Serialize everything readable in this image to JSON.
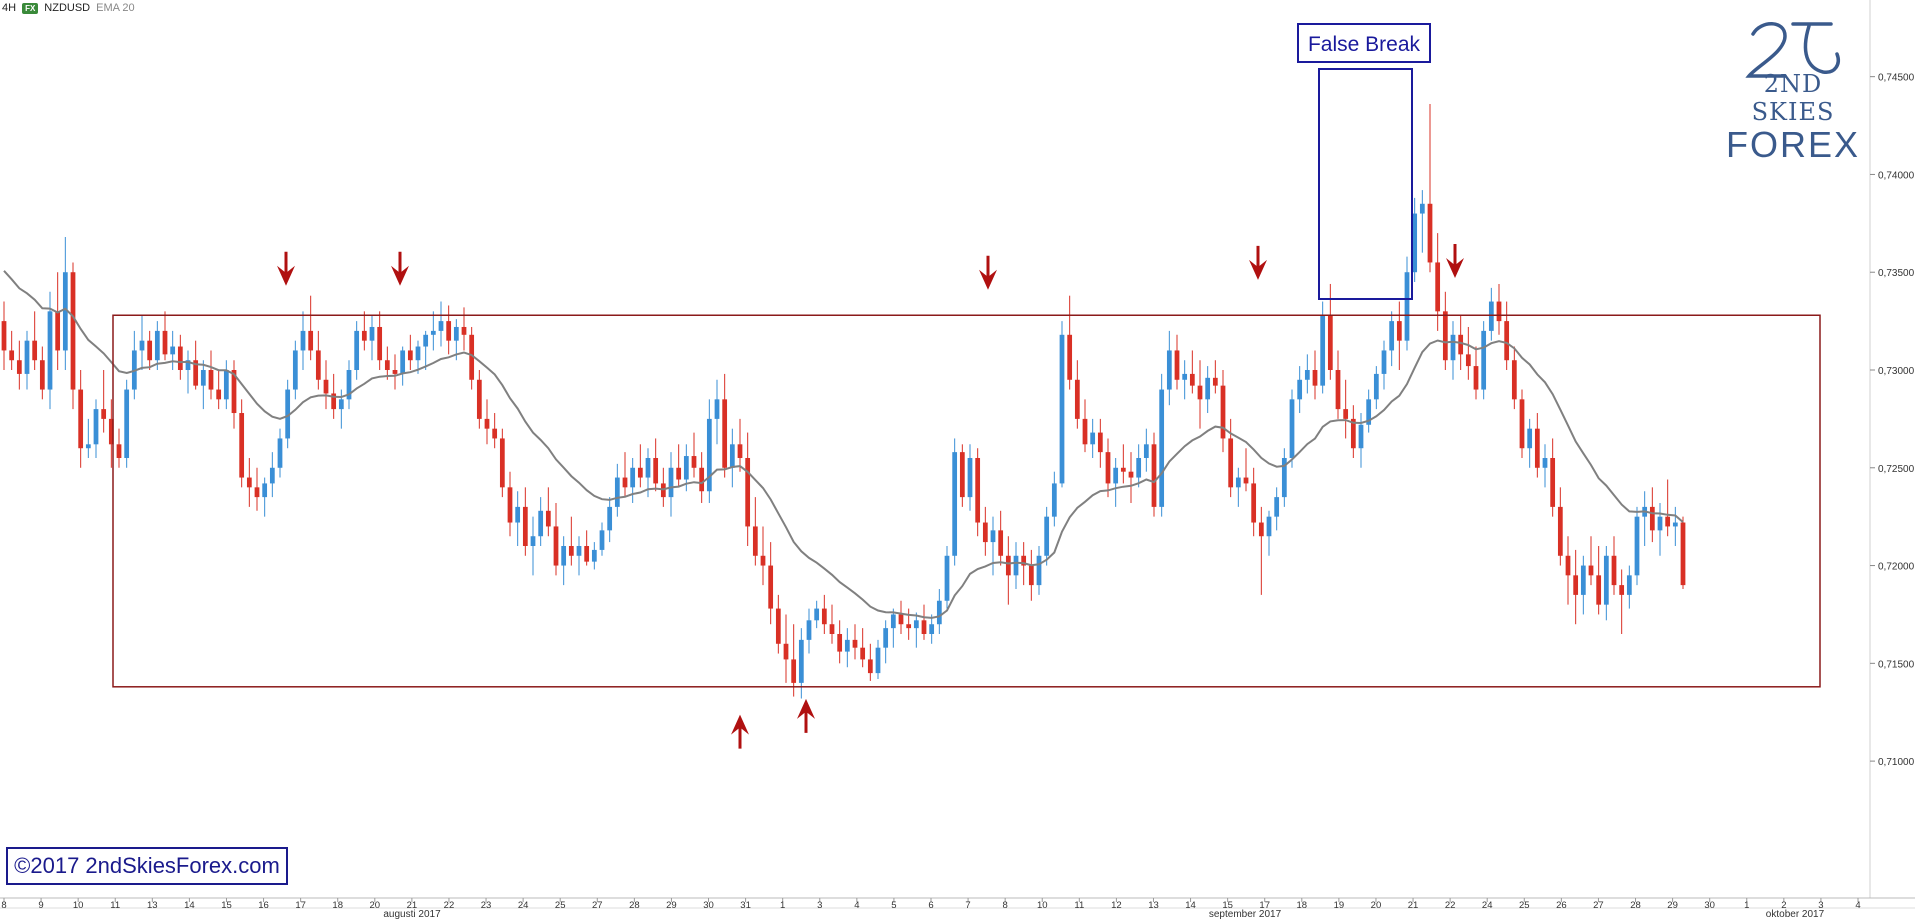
{
  "header": {
    "timeframe": "4H",
    "fx_badge": "FX",
    "symbol": "NZDUSD",
    "indicator": "EMA 20"
  },
  "logo": {
    "line1": "2ND SKIES",
    "line2": "FOREX"
  },
  "copyright": "©2017 2ndSkiesForex.com",
  "annotation": {
    "false_break_label": "False Break"
  },
  "colors": {
    "bull": "#3a8fd6",
    "bear": "#d93025",
    "ema": "#808080",
    "range_box": "#8b1a1a",
    "arrow": "#b01010",
    "false_break_box": "#1a1a9c"
  },
  "chart_data": {
    "type": "candlestick",
    "y_axis": {
      "min": 0.703,
      "max": 0.748,
      "ticks": [
        "0,74500",
        "0,74000",
        "0,73500",
        "0,73000",
        "0,72500",
        "0,72000",
        "0,71500",
        "0,71000"
      ],
      "tick_values": [
        0.745,
        0.74,
        0.735,
        0.73,
        0.725,
        0.72,
        0.715,
        0.71
      ]
    },
    "x_axis": {
      "day_labels": [
        "8",
        "9",
        "10",
        "11",
        "13",
        "14",
        "15",
        "16",
        "17",
        "18",
        "20",
        "21",
        "22",
        "23",
        "24",
        "25",
        "27",
        "28",
        "29",
        "30",
        "31",
        "1",
        "3",
        "4",
        "5",
        "6",
        "7",
        "8",
        "10",
        "11",
        "12",
        "13",
        "14",
        "15",
        "17",
        "18",
        "19",
        "20",
        "21",
        "22",
        "24",
        "25",
        "26",
        "27",
        "28",
        "29",
        "30",
        "1",
        "2",
        "3",
        "4"
      ],
      "month_labels": [
        "augusti 2017",
        "september 2017",
        "oktober 2017"
      ]
    },
    "range": {
      "top": 0.7328,
      "bottom": 0.7138
    },
    "resistance_arrows": [
      0.734,
      0.734,
      0.7338,
      0.7343,
      0.7344
    ],
    "support_arrows": [
      0.7133,
      0.7141
    ],
    "false_break_high": 0.7436,
    "candles": [
      [
        0.7325,
        0.7335,
        0.73,
        0.731
      ],
      [
        0.731,
        0.732,
        0.73,
        0.7305
      ],
      [
        0.7305,
        0.7315,
        0.729,
        0.7298
      ],
      [
        0.7298,
        0.732,
        0.729,
        0.7315
      ],
      [
        0.7315,
        0.733,
        0.73,
        0.7305
      ],
      [
        0.7305,
        0.7312,
        0.7285,
        0.729
      ],
      [
        0.729,
        0.734,
        0.728,
        0.733
      ],
      [
        0.733,
        0.735,
        0.73,
        0.731
      ],
      [
        0.731,
        0.7368,
        0.73,
        0.735
      ],
      [
        0.735,
        0.7355,
        0.728,
        0.729
      ],
      [
        0.729,
        0.73,
        0.725,
        0.726
      ],
      [
        0.726,
        0.7275,
        0.7255,
        0.7262
      ],
      [
        0.7262,
        0.7285,
        0.7255,
        0.728
      ],
      [
        0.728,
        0.73,
        0.7268,
        0.7275
      ],
      [
        0.7275,
        0.7285,
        0.725,
        0.7262
      ],
      [
        0.7262,
        0.727,
        0.725,
        0.7255
      ],
      [
        0.7255,
        0.7295,
        0.725,
        0.729
      ],
      [
        0.729,
        0.732,
        0.7285,
        0.731
      ],
      [
        0.731,
        0.7328,
        0.73,
        0.7315
      ],
      [
        0.7315,
        0.732,
        0.73,
        0.7305
      ],
      [
        0.7305,
        0.7325,
        0.73,
        0.732
      ],
      [
        0.732,
        0.733,
        0.7305,
        0.7308
      ],
      [
        0.7308,
        0.732,
        0.73,
        0.7312
      ],
      [
        0.7312,
        0.7318,
        0.7295,
        0.73
      ],
      [
        0.73,
        0.731,
        0.7288,
        0.7305
      ],
      [
        0.7305,
        0.7315,
        0.729,
        0.7292
      ],
      [
        0.7292,
        0.7305,
        0.728,
        0.73
      ],
      [
        0.73,
        0.731,
        0.7285,
        0.729
      ],
      [
        0.729,
        0.73,
        0.728,
        0.7285
      ],
      [
        0.7285,
        0.7305,
        0.728,
        0.73
      ],
      [
        0.73,
        0.7305,
        0.727,
        0.7278
      ],
      [
        0.7278,
        0.7285,
        0.724,
        0.7245
      ],
      [
        0.7245,
        0.7255,
        0.723,
        0.724
      ],
      [
        0.724,
        0.725,
        0.7228,
        0.7235
      ],
      [
        0.7235,
        0.7245,
        0.7225,
        0.7242
      ],
      [
        0.7242,
        0.7258,
        0.7235,
        0.725
      ],
      [
        0.725,
        0.727,
        0.7245,
        0.7265
      ],
      [
        0.7265,
        0.7295,
        0.726,
        0.729
      ],
      [
        0.729,
        0.7315,
        0.7285,
        0.731
      ],
      [
        0.731,
        0.733,
        0.73,
        0.732
      ],
      [
        0.732,
        0.7338,
        0.7305,
        0.731
      ],
      [
        0.731,
        0.732,
        0.729,
        0.7295
      ],
      [
        0.7295,
        0.7305,
        0.728,
        0.7288
      ],
      [
        0.7288,
        0.7298,
        0.7275,
        0.728
      ],
      [
        0.728,
        0.729,
        0.727,
        0.7285
      ],
      [
        0.7285,
        0.7305,
        0.728,
        0.73
      ],
      [
        0.73,
        0.7325,
        0.7295,
        0.732
      ],
      [
        0.732,
        0.733,
        0.731,
        0.7315
      ],
      [
        0.7315,
        0.7328,
        0.7305,
        0.7322
      ],
      [
        0.7322,
        0.733,
        0.73,
        0.7305
      ],
      [
        0.7305,
        0.7312,
        0.7295,
        0.73
      ],
      [
        0.73,
        0.7308,
        0.729,
        0.7298
      ],
      [
        0.7298,
        0.7312,
        0.7292,
        0.731
      ],
      [
        0.731,
        0.7318,
        0.73,
        0.7305
      ],
      [
        0.7305,
        0.7315,
        0.7298,
        0.7312
      ],
      [
        0.7312,
        0.732,
        0.73,
        0.7318
      ],
      [
        0.7318,
        0.733,
        0.731,
        0.732
      ],
      [
        0.732,
        0.7335,
        0.7312,
        0.7325
      ],
      [
        0.7325,
        0.7333,
        0.7308,
        0.7315
      ],
      [
        0.7315,
        0.7326,
        0.7305,
        0.7322
      ],
      [
        0.7322,
        0.7332,
        0.731,
        0.7318
      ],
      [
        0.7318,
        0.7322,
        0.729,
        0.7295
      ],
      [
        0.7295,
        0.73,
        0.727,
        0.7275
      ],
      [
        0.7275,
        0.7285,
        0.7262,
        0.727
      ],
      [
        0.727,
        0.7278,
        0.726,
        0.7265
      ],
      [
        0.7265,
        0.727,
        0.7235,
        0.724
      ],
      [
        0.724,
        0.7248,
        0.7215,
        0.7222
      ],
      [
        0.7222,
        0.7238,
        0.721,
        0.723
      ],
      [
        0.723,
        0.724,
        0.7205,
        0.721
      ],
      [
        0.721,
        0.7225,
        0.7195,
        0.7215
      ],
      [
        0.7215,
        0.7235,
        0.721,
        0.7228
      ],
      [
        0.7228,
        0.724,
        0.7215,
        0.722
      ],
      [
        0.722,
        0.7232,
        0.7195,
        0.72
      ],
      [
        0.72,
        0.7215,
        0.719,
        0.721
      ],
      [
        0.721,
        0.7225,
        0.72,
        0.7205
      ],
      [
        0.7205,
        0.7215,
        0.7195,
        0.721
      ],
      [
        0.721,
        0.7218,
        0.72,
        0.7202
      ],
      [
        0.7202,
        0.7212,
        0.7198,
        0.7208
      ],
      [
        0.7208,
        0.7222,
        0.7205,
        0.7218
      ],
      [
        0.7218,
        0.7235,
        0.7212,
        0.723
      ],
      [
        0.723,
        0.7252,
        0.7225,
        0.7245
      ],
      [
        0.7245,
        0.7258,
        0.7235,
        0.724
      ],
      [
        0.724,
        0.7255,
        0.7232,
        0.725
      ],
      [
        0.725,
        0.7262,
        0.724,
        0.7245
      ],
      [
        0.7245,
        0.726,
        0.7235,
        0.7255
      ],
      [
        0.7255,
        0.7265,
        0.7238,
        0.7242
      ],
      [
        0.7242,
        0.725,
        0.723,
        0.7235
      ],
      [
        0.7235,
        0.7258,
        0.7225,
        0.725
      ],
      [
        0.725,
        0.7262,
        0.724,
        0.7244
      ],
      [
        0.7244,
        0.7262,
        0.7238,
        0.7256
      ],
      [
        0.7256,
        0.7268,
        0.7245,
        0.725
      ],
      [
        0.725,
        0.7258,
        0.7232,
        0.7238
      ],
      [
        0.7238,
        0.7285,
        0.7232,
        0.7275
      ],
      [
        0.7275,
        0.7295,
        0.7262,
        0.7285
      ],
      [
        0.7285,
        0.7298,
        0.7245,
        0.725
      ],
      [
        0.725,
        0.727,
        0.724,
        0.7262
      ],
      [
        0.7262,
        0.7275,
        0.7248,
        0.7255
      ],
      [
        0.7255,
        0.7268,
        0.721,
        0.722
      ],
      [
        0.722,
        0.7235,
        0.72,
        0.7205
      ],
      [
        0.7205,
        0.722,
        0.719,
        0.72
      ],
      [
        0.72,
        0.7212,
        0.717,
        0.7178
      ],
      [
        0.7178,
        0.7185,
        0.7155,
        0.716
      ],
      [
        0.716,
        0.7175,
        0.714,
        0.7152
      ],
      [
        0.7152,
        0.717,
        0.7133,
        0.714
      ],
      [
        0.714,
        0.7168,
        0.7132,
        0.7162
      ],
      [
        0.7162,
        0.7178,
        0.7155,
        0.7172
      ],
      [
        0.7172,
        0.7182,
        0.7168,
        0.7178
      ],
      [
        0.7178,
        0.7185,
        0.7165,
        0.717
      ],
      [
        0.717,
        0.718,
        0.716,
        0.7165
      ],
      [
        0.7165,
        0.7172,
        0.715,
        0.7156
      ],
      [
        0.7156,
        0.7168,
        0.7148,
        0.7162
      ],
      [
        0.7162,
        0.717,
        0.7152,
        0.7158
      ],
      [
        0.7158,
        0.7168,
        0.7148,
        0.7152
      ],
      [
        0.7152,
        0.716,
        0.7141,
        0.7145
      ],
      [
        0.7145,
        0.7162,
        0.7142,
        0.7158
      ],
      [
        0.7158,
        0.7172,
        0.715,
        0.7168
      ],
      [
        0.7168,
        0.7178,
        0.7158,
        0.7175
      ],
      [
        0.7175,
        0.7182,
        0.7165,
        0.717
      ],
      [
        0.717,
        0.7178,
        0.7162,
        0.7168
      ],
      [
        0.7168,
        0.7176,
        0.7158,
        0.7172
      ],
      [
        0.7172,
        0.718,
        0.7162,
        0.7165
      ],
      [
        0.7165,
        0.7175,
        0.716,
        0.717
      ],
      [
        0.717,
        0.7188,
        0.7165,
        0.7182
      ],
      [
        0.7182,
        0.721,
        0.7178,
        0.7205
      ],
      [
        0.7205,
        0.7265,
        0.72,
        0.7258
      ],
      [
        0.7258,
        0.7262,
        0.723,
        0.7235
      ],
      [
        0.7235,
        0.7262,
        0.7228,
        0.7255
      ],
      [
        0.7255,
        0.726,
        0.7215,
        0.7222
      ],
      [
        0.7222,
        0.723,
        0.7205,
        0.7212
      ],
      [
        0.7212,
        0.7225,
        0.7195,
        0.7218
      ],
      [
        0.7218,
        0.7228,
        0.72,
        0.7205
      ],
      [
        0.7205,
        0.7215,
        0.718,
        0.7195
      ],
      [
        0.7195,
        0.7212,
        0.7188,
        0.7205
      ],
      [
        0.7205,
        0.7212,
        0.719,
        0.72
      ],
      [
        0.72,
        0.7208,
        0.7182,
        0.719
      ],
      [
        0.719,
        0.721,
        0.7185,
        0.7205
      ],
      [
        0.7205,
        0.723,
        0.72,
        0.7225
      ],
      [
        0.7225,
        0.7248,
        0.722,
        0.7242
      ],
      [
        0.7242,
        0.7325,
        0.724,
        0.7318
      ],
      [
        0.7318,
        0.7338,
        0.729,
        0.7295
      ],
      [
        0.7295,
        0.7305,
        0.727,
        0.7275
      ],
      [
        0.7275,
        0.7285,
        0.7258,
        0.7262
      ],
      [
        0.7262,
        0.7275,
        0.7255,
        0.7268
      ],
      [
        0.7268,
        0.7275,
        0.725,
        0.7258
      ],
      [
        0.7258,
        0.7265,
        0.7235,
        0.7242
      ],
      [
        0.7242,
        0.7255,
        0.723,
        0.725
      ],
      [
        0.725,
        0.7262,
        0.7242,
        0.7248
      ],
      [
        0.7248,
        0.7258,
        0.7232,
        0.7245
      ],
      [
        0.7245,
        0.7262,
        0.724,
        0.7255
      ],
      [
        0.7255,
        0.727,
        0.7248,
        0.7262
      ],
      [
        0.7262,
        0.7268,
        0.7225,
        0.723
      ],
      [
        0.723,
        0.7298,
        0.7225,
        0.729
      ],
      [
        0.729,
        0.732,
        0.7282,
        0.731
      ],
      [
        0.731,
        0.7318,
        0.729,
        0.7295
      ],
      [
        0.7295,
        0.7305,
        0.7285,
        0.7298
      ],
      [
        0.7298,
        0.731,
        0.7288,
        0.7292
      ],
      [
        0.7292,
        0.7305,
        0.727,
        0.7285
      ],
      [
        0.7285,
        0.7302,
        0.7278,
        0.7296
      ],
      [
        0.7296,
        0.7305,
        0.7288,
        0.7292
      ],
      [
        0.7292,
        0.73,
        0.7258,
        0.7265
      ],
      [
        0.7265,
        0.7275,
        0.7235,
        0.724
      ],
      [
        0.724,
        0.725,
        0.723,
        0.7245
      ],
      [
        0.7245,
        0.726,
        0.7238,
        0.7242
      ],
      [
        0.7242,
        0.725,
        0.7215,
        0.7222
      ],
      [
        0.7222,
        0.723,
        0.7185,
        0.7215
      ],
      [
        0.7215,
        0.7228,
        0.7205,
        0.7225
      ],
      [
        0.7225,
        0.724,
        0.7218,
        0.7235
      ],
      [
        0.7235,
        0.726,
        0.723,
        0.7255
      ],
      [
        0.7255,
        0.729,
        0.725,
        0.7285
      ],
      [
        0.7285,
        0.7302,
        0.7278,
        0.7295
      ],
      [
        0.7295,
        0.7308,
        0.7288,
        0.73
      ],
      [
        0.73,
        0.731,
        0.7285,
        0.7292
      ],
      [
        0.7292,
        0.7335,
        0.7288,
        0.7328
      ],
      [
        0.7328,
        0.7344,
        0.7295,
        0.73
      ],
      [
        0.73,
        0.731,
        0.7275,
        0.728
      ],
      [
        0.728,
        0.7295,
        0.7265,
        0.7275
      ],
      [
        0.7275,
        0.7282,
        0.7255,
        0.726
      ],
      [
        0.726,
        0.7278,
        0.725,
        0.7272
      ],
      [
        0.7272,
        0.729,
        0.7268,
        0.7285
      ],
      [
        0.7285,
        0.7302,
        0.728,
        0.7298
      ],
      [
        0.7298,
        0.7315,
        0.729,
        0.731
      ],
      [
        0.731,
        0.733,
        0.7302,
        0.7325
      ],
      [
        0.7325,
        0.7335,
        0.73,
        0.7315
      ],
      [
        0.7315,
        0.7358,
        0.731,
        0.735
      ],
      [
        0.735,
        0.7388,
        0.7345,
        0.738
      ],
      [
        0.738,
        0.7392,
        0.736,
        0.7385
      ],
      [
        0.7385,
        0.7436,
        0.735,
        0.7355
      ],
      [
        0.7355,
        0.737,
        0.732,
        0.733
      ],
      [
        0.733,
        0.734,
        0.73,
        0.7305
      ],
      [
        0.7305,
        0.7325,
        0.7295,
        0.7318
      ],
      [
        0.7318,
        0.7328,
        0.73,
        0.7308
      ],
      [
        0.7308,
        0.7322,
        0.7295,
        0.7302
      ],
      [
        0.7302,
        0.7312,
        0.7285,
        0.729
      ],
      [
        0.729,
        0.7325,
        0.7285,
        0.732
      ],
      [
        0.732,
        0.7342,
        0.7315,
        0.7335
      ],
      [
        0.7335,
        0.7344,
        0.7318,
        0.7325
      ],
      [
        0.7325,
        0.7335,
        0.73,
        0.7305
      ],
      [
        0.7305,
        0.7312,
        0.728,
        0.7285
      ],
      [
        0.7285,
        0.729,
        0.7255,
        0.726
      ],
      [
        0.726,
        0.7275,
        0.725,
        0.727
      ],
      [
        0.727,
        0.7278,
        0.7245,
        0.725
      ],
      [
        0.725,
        0.7262,
        0.724,
        0.7255
      ],
      [
        0.7255,
        0.7265,
        0.7225,
        0.723
      ],
      [
        0.723,
        0.724,
        0.72,
        0.7205
      ],
      [
        0.7205,
        0.7215,
        0.718,
        0.7195
      ],
      [
        0.7195,
        0.7208,
        0.717,
        0.7185
      ],
      [
        0.7185,
        0.7205,
        0.7175,
        0.72
      ],
      [
        0.72,
        0.7215,
        0.719,
        0.7195
      ],
      [
        0.7195,
        0.721,
        0.7175,
        0.718
      ],
      [
        0.718,
        0.721,
        0.7172,
        0.7205
      ],
      [
        0.7205,
        0.7215,
        0.7185,
        0.719
      ],
      [
        0.719,
        0.7198,
        0.7165,
        0.7185
      ],
      [
        0.7185,
        0.72,
        0.7178,
        0.7195
      ],
      [
        0.7195,
        0.723,
        0.719,
        0.7225
      ],
      [
        0.7225,
        0.7238,
        0.721,
        0.723
      ],
      [
        0.723,
        0.724,
        0.7212,
        0.7218
      ],
      [
        0.7218,
        0.7232,
        0.7205,
        0.7225
      ],
      [
        0.7225,
        0.7244,
        0.7215,
        0.722
      ],
      [
        0.722,
        0.723,
        0.721,
        0.7222
      ],
      [
        0.7222,
        0.7225,
        0.7188,
        0.719
      ]
    ]
  }
}
